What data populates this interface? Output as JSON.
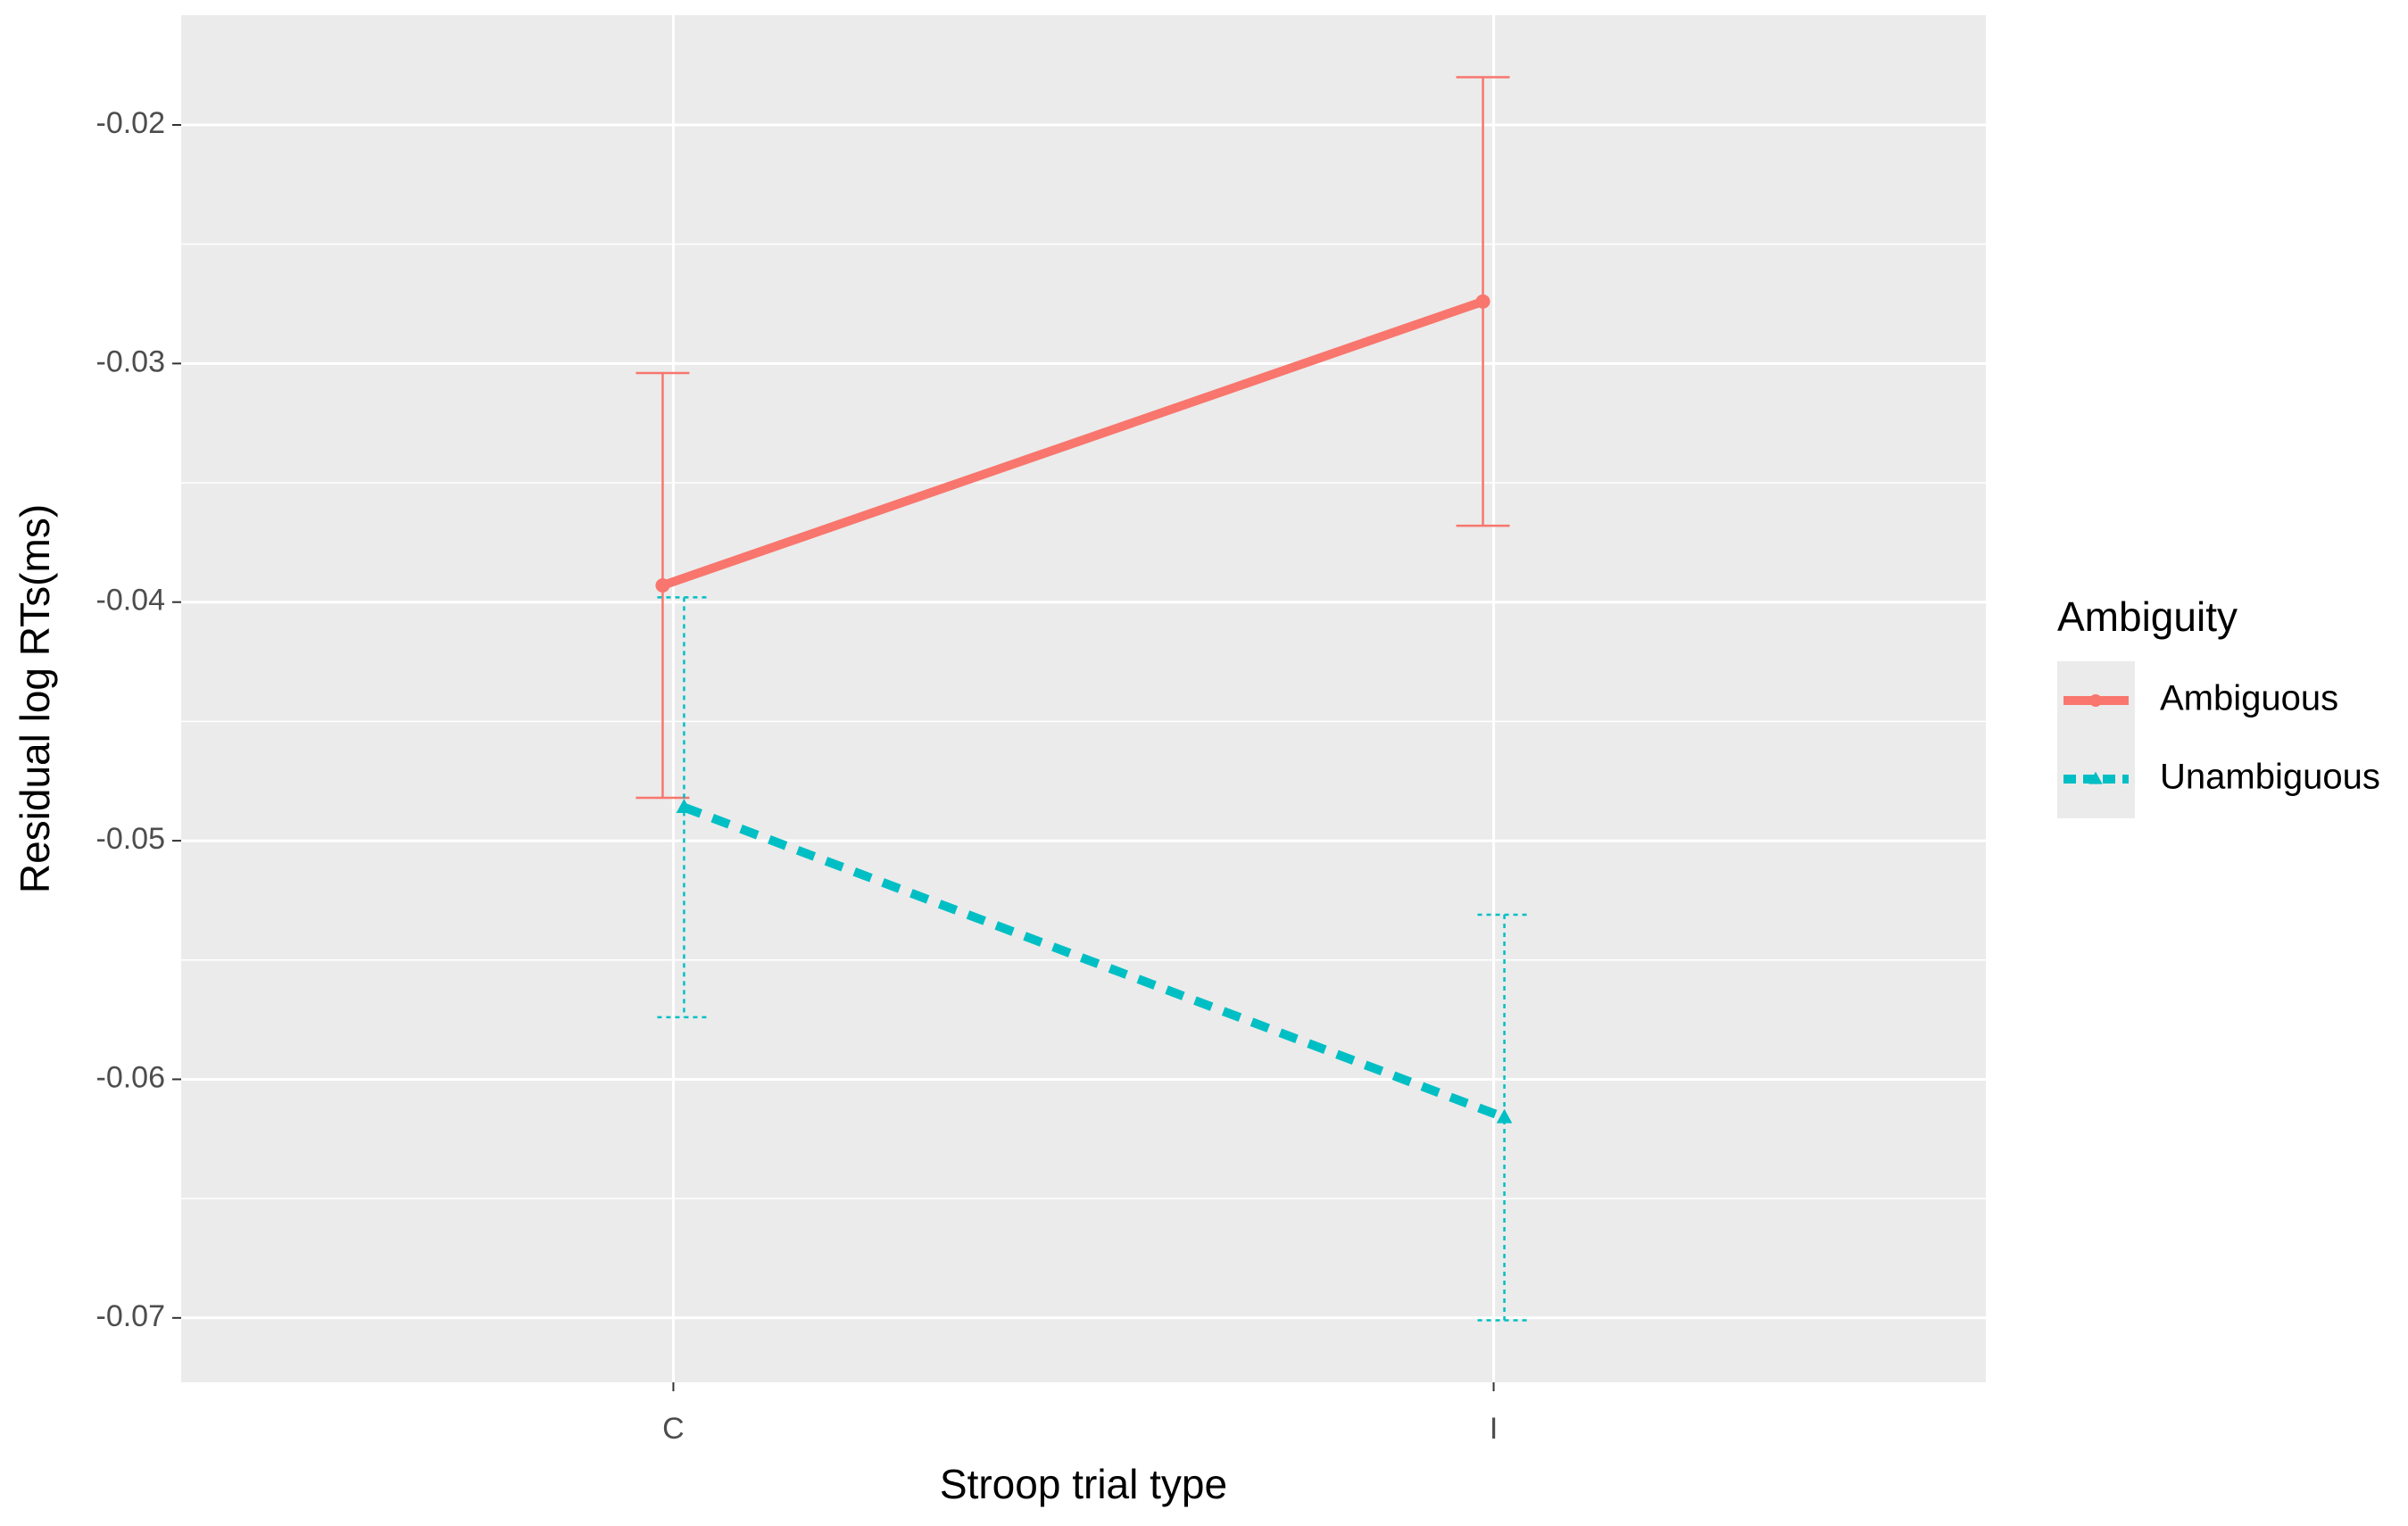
{
  "chart_data": {
    "type": "line",
    "xlabel": "Stroop trial type",
    "ylabel": "Residual log RTs(ms)",
    "categories": [
      "C",
      "I"
    ],
    "ylim": [
      -0.0727,
      -0.0154
    ],
    "yticks": [
      -0.07,
      -0.06,
      -0.05,
      -0.04,
      -0.03,
      -0.02
    ],
    "grid": true,
    "legend": {
      "title": "Ambiguity",
      "position": "right"
    },
    "series": [
      {
        "name": "Ambiguous",
        "color": "#f8766d",
        "linestyle": "solid",
        "marker": "circle",
        "values": [
          -0.0393,
          -0.0274
        ],
        "errors": [
          0.0089,
          0.0094
        ]
      },
      {
        "name": "Unambiguous",
        "color": "#00bfc4",
        "linestyle": "dashed",
        "marker": "triangle",
        "values": [
          -0.0486,
          -0.0616
        ],
        "errors": [
          0.0088,
          0.0085
        ]
      }
    ]
  }
}
